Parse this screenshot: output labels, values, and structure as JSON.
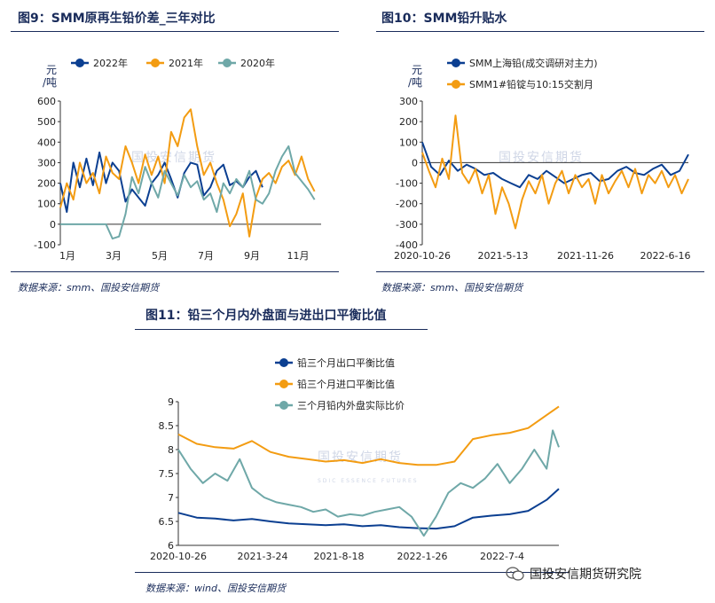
{
  "charts": [
    {
      "title": "图9：SMM原再生铅价差_三年对比",
      "source": "数据来源：smm、国投安信期货",
      "unit_top": "元",
      "unit_bottom": "/吨",
      "watermark": "国投安信期货"
    },
    {
      "title": "图10：SMM铅升贴水",
      "source": "数据来源：smm、国投安信期货",
      "unit_top": "元",
      "unit_bottom": "/吨",
      "watermark": "国投安信期货"
    },
    {
      "title": "图11：铅三个月内外盘面与进出口平衡比值",
      "source": "数据来源：wind、国投安信期货",
      "watermark": "国投安信期货",
      "watermark_sub": "SDIC ESSENCE FUTURES"
    }
  ],
  "footer": {
    "brand": "国投安信期货研究院"
  },
  "colors": {
    "dark_blue": "#0b3f91",
    "orange": "#f39c12",
    "teal": "#6fa8a8",
    "accent": "#1a2c5b"
  },
  "chart_data": [
    {
      "type": "line",
      "title": "图9：SMM原再生铅价差_三年对比",
      "ylabel": "元/吨",
      "ylim": [
        -100,
        600
      ],
      "yticks": [
        -100,
        0,
        100,
        200,
        300,
        400,
        500,
        600
      ],
      "xticks": [
        "1月",
        "3月",
        "5月",
        "7月",
        "9月",
        "11月"
      ],
      "xrange": [
        1,
        13
      ],
      "series": [
        {
          "name": "2022年",
          "color": "#0b3f91",
          "x": [
            1,
            1.3,
            1.6,
            1.9,
            2.2,
            2.5,
            2.8,
            3.1,
            3.4,
            3.7,
            4,
            4.3,
            4.6,
            4.9,
            5.2,
            5.5,
            5.8,
            6.1,
            6.4,
            6.7,
            7,
            7.3,
            7.6,
            7.9,
            8.2,
            8.5,
            8.8,
            9.1,
            9.4,
            9.7,
            10,
            10.3
          ],
          "y": [
            200,
            60,
            300,
            180,
            320,
            190,
            350,
            200,
            300,
            260,
            110,
            170,
            130,
            90,
            200,
            240,
            300,
            220,
            130,
            250,
            300,
            290,
            140,
            180,
            260,
            290,
            190,
            210,
            180,
            230,
            260,
            180
          ]
        },
        {
          "name": "2021年",
          "color": "#f39c12",
          "x": [
            1,
            1.3,
            1.6,
            1.9,
            2.2,
            2.5,
            2.8,
            3.1,
            3.4,
            3.7,
            4,
            4.3,
            4.6,
            4.9,
            5.2,
            5.5,
            5.8,
            6.1,
            6.4,
            6.7,
            7,
            7.3,
            7.6,
            7.9,
            8.2,
            8.5,
            8.8,
            9.1,
            9.4,
            9.7,
            10,
            10.3,
            10.6,
            10.9,
            11.2,
            11.5,
            11.8,
            12.1,
            12.4,
            12.7
          ],
          "y": [
            80,
            200,
            120,
            300,
            200,
            250,
            150,
            330,
            250,
            220,
            380,
            300,
            200,
            340,
            240,
            330,
            200,
            450,
            380,
            520,
            560,
            380,
            240,
            300,
            200,
            120,
            -10,
            50,
            150,
            -60,
            130,
            220,
            250,
            200,
            280,
            310,
            240,
            330,
            220,
            160
          ]
        },
        {
          "name": "2020年",
          "color": "#6fa8a8",
          "x": [
            1,
            1.3,
            1.6,
            1.9,
            2.2,
            2.5,
            2.8,
            3.1,
            3.4,
            3.7,
            4,
            4.3,
            4.6,
            4.9,
            5.2,
            5.5,
            5.8,
            6.1,
            6.4,
            6.7,
            7,
            7.3,
            7.6,
            7.9,
            8.2,
            8.5,
            8.8,
            9.1,
            9.4,
            9.7,
            10,
            10.3,
            10.6,
            10.9,
            11.2,
            11.5,
            11.8,
            12.1,
            12.4,
            12.7
          ],
          "y": [
            0,
            0,
            0,
            0,
            0,
            0,
            0,
            0,
            -70,
            -60,
            50,
            230,
            150,
            280,
            200,
            130,
            260,
            200,
            140,
            240,
            180,
            210,
            120,
            150,
            60,
            200,
            150,
            220,
            180,
            260,
            120,
            100,
            150,
            260,
            330,
            380,
            250,
            210,
            170,
            120
          ]
        }
      ]
    },
    {
      "type": "line",
      "title": "图10：SMM铅升贴水",
      "ylabel": "元/吨",
      "ylim": [
        -400,
        300
      ],
      "yticks": [
        -400,
        -300,
        -200,
        -100,
        0,
        100,
        200,
        300
      ],
      "xticks": [
        "2020-10-26",
        "2021-5-13",
        "2021-11-26",
        "2022-6-16"
      ],
      "xrange": [
        0,
        600
      ],
      "series": [
        {
          "name": "SMM上海铅(成交调研对主力)",
          "color": "#0b3f91",
          "x": [
            0,
            20,
            40,
            60,
            80,
            100,
            120,
            140,
            160,
            180,
            200,
            220,
            240,
            260,
            280,
            300,
            320,
            340,
            360,
            380,
            400,
            420,
            440,
            460,
            480,
            500,
            520,
            540,
            560,
            580,
            600
          ],
          "y": [
            100,
            -20,
            -60,
            10,
            -40,
            -10,
            -30,
            -60,
            -50,
            -80,
            -100,
            -120,
            -60,
            -80,
            -40,
            -70,
            -100,
            -80,
            -60,
            -50,
            -90,
            -80,
            -40,
            -20,
            -50,
            -60,
            -30,
            -10,
            -60,
            -40,
            40
          ]
        },
        {
          "name": "SMM1#铅锭与10:15交割月",
          "color": "#f39c12",
          "x": [
            0,
            15,
            30,
            45,
            60,
            75,
            90,
            105,
            120,
            135,
            150,
            165,
            180,
            195,
            210,
            225,
            240,
            255,
            270,
            285,
            300,
            315,
            330,
            345,
            360,
            375,
            390,
            405,
            420,
            435,
            450,
            465,
            480,
            495,
            510,
            525,
            540,
            555,
            570,
            585,
            600
          ],
          "y": [
            50,
            -40,
            -120,
            20,
            -80,
            230,
            -50,
            -100,
            -30,
            -150,
            -60,
            -250,
            -120,
            -200,
            -320,
            -180,
            -90,
            -150,
            -60,
            -200,
            -100,
            -40,
            -150,
            -60,
            -120,
            -80,
            -200,
            -60,
            -150,
            -90,
            -40,
            -120,
            -30,
            -150,
            -60,
            -100,
            -40,
            -120,
            -60,
            -150,
            -80
          ]
        }
      ]
    },
    {
      "type": "line",
      "title": "图11：铅三个月内外盘面与进出口平衡比值",
      "ylim": [
        6,
        9
      ],
      "yticks": [
        6,
        6.5,
        7,
        7.5,
        8,
        8.5,
        9
      ],
      "xticks": [
        "2020-10-26",
        "2021-3-24",
        "2021-8-18",
        "2022-1-26",
        "2022-7-4"
      ],
      "xrange": [
        0,
        620
      ],
      "series": [
        {
          "name": "铅三个月出口平衡比值",
          "color": "#0b3f91",
          "x": [
            0,
            30,
            60,
            90,
            120,
            150,
            180,
            210,
            240,
            270,
            300,
            330,
            360,
            390,
            420,
            450,
            480,
            510,
            540,
            570,
            600,
            620
          ],
          "y": [
            6.68,
            6.58,
            6.56,
            6.52,
            6.55,
            6.5,
            6.46,
            6.44,
            6.42,
            6.44,
            6.4,
            6.42,
            6.38,
            6.36,
            6.35,
            6.4,
            6.58,
            6.62,
            6.65,
            6.72,
            6.95,
            7.18
          ]
        },
        {
          "name": "铅三个月进口平衡比值",
          "color": "#f39c12",
          "x": [
            0,
            30,
            60,
            90,
            120,
            150,
            180,
            210,
            240,
            270,
            300,
            330,
            360,
            390,
            420,
            450,
            480,
            510,
            540,
            570,
            600,
            620
          ],
          "y": [
            8.32,
            8.12,
            8.05,
            8.02,
            8.18,
            7.95,
            7.85,
            7.8,
            7.75,
            7.78,
            7.72,
            7.8,
            7.72,
            7.68,
            7.68,
            7.75,
            8.22,
            8.3,
            8.35,
            8.45,
            8.72,
            8.9
          ]
        },
        {
          "name": "三个月铅内外盘实际比价",
          "color": "#6fa8a8",
          "x": [
            0,
            20,
            40,
            60,
            80,
            100,
            120,
            140,
            160,
            180,
            200,
            220,
            240,
            260,
            280,
            300,
            320,
            340,
            360,
            380,
            400,
            420,
            440,
            460,
            480,
            500,
            520,
            540,
            560,
            580,
            600,
            610,
            620
          ],
          "y": [
            8.0,
            7.6,
            7.3,
            7.5,
            7.35,
            7.8,
            7.2,
            7.0,
            6.9,
            6.85,
            6.8,
            6.7,
            6.75,
            6.6,
            6.65,
            6.62,
            6.7,
            6.75,
            6.8,
            6.6,
            6.2,
            6.6,
            7.1,
            7.3,
            7.2,
            7.4,
            7.7,
            7.3,
            7.6,
            8.0,
            7.6,
            8.4,
            8.05
          ]
        }
      ]
    }
  ]
}
